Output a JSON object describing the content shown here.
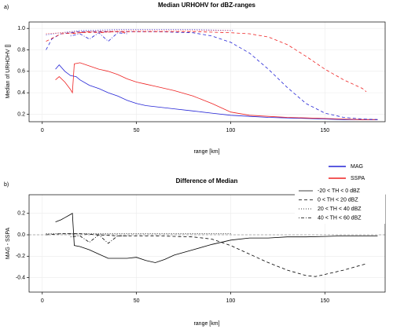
{
  "chart_data": [
    {
      "type": "line",
      "panel": "a)",
      "title": "Median URHOHV for dBZ-ranges",
      "x_label": "range [km]",
      "y_label": "Median of URHOHV []",
      "xlim": [
        -7,
        182
      ],
      "xticks": [
        0,
        50,
        100,
        150
      ],
      "ylim": [
        0.13,
        1.06
      ],
      "yticks": [
        0.2,
        0.4,
        0.6,
        0.8,
        {
          "value": 1,
          "label": "1.0"
        }
      ],
      "grid": true,
      "legend": [
        {
          "name": "MAG",
          "color": "#2323d6"
        },
        {
          "name": "SSPA",
          "color": "#ee2222"
        }
      ],
      "series": [
        {
          "color": "#2323d6",
          "dash": "solid",
          "x": [
            7,
            9,
            12,
            15,
            18,
            20,
            25,
            30,
            35,
            40,
            45,
            50,
            55,
            60,
            70,
            80,
            90,
            100,
            110,
            120,
            130,
            140,
            150,
            160,
            170,
            178
          ],
          "values": [
            0.62,
            0.66,
            0.6,
            0.56,
            0.55,
            0.52,
            0.47,
            0.44,
            0.4,
            0.37,
            0.33,
            0.3,
            0.28,
            0.27,
            0.25,
            0.23,
            0.21,
            0.19,
            0.18,
            0.17,
            0.165,
            0.16,
            0.155,
            0.15,
            0.15,
            0.15
          ]
        },
        {
          "color": "#ee2222",
          "dash": "solid",
          "x": [
            7,
            9,
            12,
            15,
            16,
            17,
            20,
            25,
            30,
            35,
            40,
            45,
            50,
            55,
            60,
            70,
            80,
            90,
            95,
            100,
            110,
            120,
            130,
            140,
            150,
            160,
            170,
            178
          ],
          "values": [
            0.52,
            0.55,
            0.5,
            0.43,
            0.4,
            0.67,
            0.68,
            0.65,
            0.62,
            0.6,
            0.57,
            0.53,
            0.5,
            0.48,
            0.46,
            0.42,
            0.37,
            0.3,
            0.26,
            0.22,
            0.19,
            0.18,
            0.17,
            0.165,
            0.16,
            0.155,
            0.15,
            0.15
          ]
        },
        {
          "color": "#2323d6",
          "dash": "dashed",
          "x": [
            2,
            5,
            10,
            20,
            40,
            60,
            80,
            90,
            100,
            110,
            120,
            130,
            140,
            150,
            160,
            170,
            178
          ],
          "values": [
            0.8,
            0.9,
            0.95,
            0.97,
            0.97,
            0.97,
            0.96,
            0.93,
            0.87,
            0.77,
            0.62,
            0.45,
            0.3,
            0.21,
            0.17,
            0.155,
            0.15
          ]
        },
        {
          "color": "#ee2222",
          "dash": "dashed",
          "x": [
            2,
            10,
            20,
            40,
            60,
            80,
            100,
            110,
            120,
            130,
            140,
            150,
            160,
            170,
            172
          ],
          "values": [
            0.88,
            0.95,
            0.96,
            0.97,
            0.97,
            0.97,
            0.96,
            0.95,
            0.92,
            0.85,
            0.74,
            0.62,
            0.52,
            0.44,
            0.41
          ]
        },
        {
          "color": "#2323d6",
          "dash": "dotted",
          "x": [
            2,
            10,
            20,
            40,
            60,
            80,
            102
          ],
          "values": [
            0.94,
            0.96,
            0.98,
            0.99,
            0.99,
            0.99,
            0.98
          ]
        },
        {
          "color": "#ee2222",
          "dash": "dotted",
          "x": [
            2,
            10,
            20,
            40,
            60,
            80,
            100
          ],
          "values": [
            0.95,
            0.96,
            0.97,
            0.98,
            0.98,
            0.98,
            0.98
          ]
        },
        {
          "color": "#2323d6",
          "dash": "dotdash",
          "x": [
            15,
            20,
            25,
            30,
            35,
            40,
            45
          ],
          "values": [
            0.93,
            0.95,
            0.9,
            0.96,
            0.88,
            0.96,
            0.95
          ]
        },
        {
          "color": "#ee2222",
          "dash": "dotdash",
          "x": [
            15,
            20,
            25,
            30,
            40,
            45
          ],
          "values": [
            0.95,
            0.96,
            0.97,
            0.96,
            0.97,
            0.96
          ]
        }
      ]
    },
    {
      "type": "line",
      "panel": "b)",
      "title": "Difference of Median",
      "x_label": "range [km]",
      "y_label": "MAG - SSPA",
      "xlim": [
        -7,
        182
      ],
      "xticks": [
        0,
        50,
        100,
        150
      ],
      "ylim": [
        -0.535,
        0.374
      ],
      "yticks": [
        -0.4,
        -0.2,
        {
          "value": 0,
          "label": "0.0"
        },
        0.2
      ],
      "grid": true,
      "reference_line": 0,
      "line_styles": [
        {
          "name": "-20 < TH < 0 dBZ",
          "dash": "solid"
        },
        {
          "name": "0 < TH < 20 dBZ",
          "dash": "dashed"
        },
        {
          "name": "20 < TH < 40 dBZ",
          "dash": "dotted"
        },
        {
          "name": "40 < TH < 60 dBZ",
          "dash": "dotdash"
        }
      ],
      "series": [
        {
          "color": "#000000",
          "dash": "solid",
          "x": [
            7,
            10,
            12,
            14,
            15,
            16,
            17,
            20,
            25,
            30,
            35,
            40,
            45,
            50,
            55,
            60,
            65,
            70,
            80,
            90,
            100,
            110,
            120,
            130,
            140,
            150,
            160,
            170,
            178
          ],
          "values": [
            0.12,
            0.14,
            0.16,
            0.18,
            0.19,
            0.2,
            -0.1,
            -0.11,
            -0.14,
            -0.18,
            -0.22,
            -0.22,
            -0.22,
            -0.21,
            -0.24,
            -0.26,
            -0.23,
            -0.19,
            -0.14,
            -0.09,
            -0.05,
            -0.03,
            -0.03,
            -0.02,
            -0.02,
            -0.015,
            -0.01,
            -0.01,
            -0.01
          ]
        },
        {
          "color": "#000000",
          "dash": "dashed",
          "x": [
            2,
            10,
            20,
            40,
            60,
            80,
            90,
            100,
            110,
            120,
            130,
            140,
            145,
            150,
            160,
            170,
            172
          ],
          "values": [
            0,
            0.01,
            0.01,
            -0.01,
            -0.01,
            -0.02,
            -0.04,
            -0.1,
            -0.18,
            -0.26,
            -0.33,
            -0.38,
            -0.39,
            -0.37,
            -0.33,
            -0.28,
            -0.27
          ]
        },
        {
          "color": "#000000",
          "dash": "dotted",
          "x": [
            2,
            20,
            40,
            60,
            80,
            100
          ],
          "values": [
            0.01,
            0.01,
            0.01,
            0.01,
            0.01,
            0.01
          ]
        },
        {
          "color": "#000000",
          "dash": "dotdash",
          "x": [
            15,
            20,
            25,
            30,
            35,
            40,
            45
          ],
          "values": [
            -0.02,
            -0.01,
            -0.07,
            0,
            -0.08,
            -0.01,
            -0.01
          ]
        }
      ]
    }
  ]
}
